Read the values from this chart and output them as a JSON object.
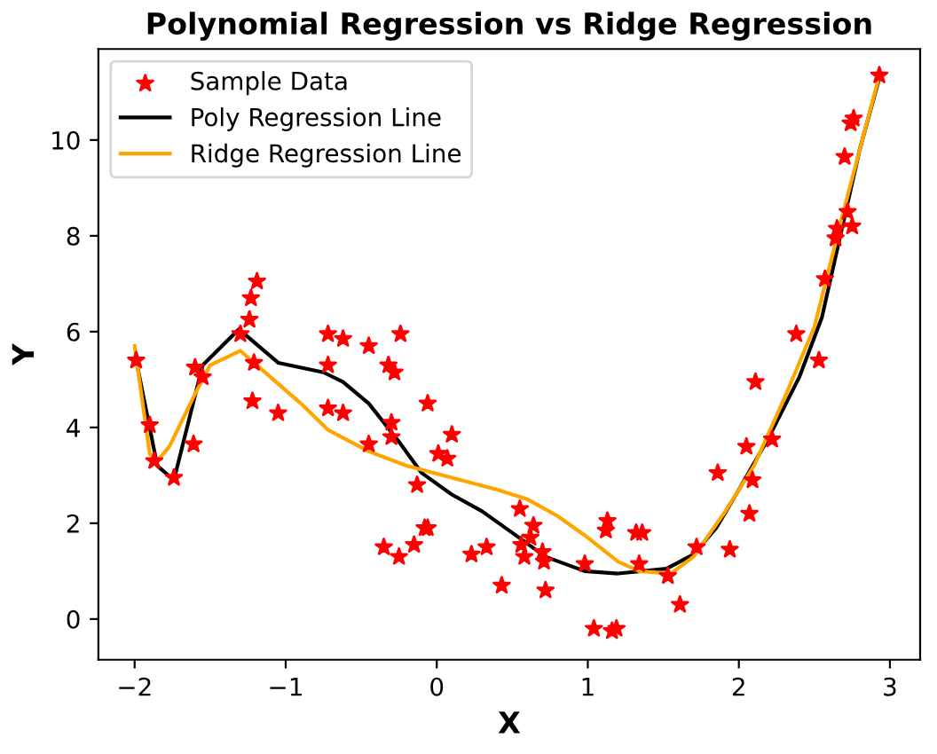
{
  "chart_data": {
    "type": "scatter",
    "title": "Polynomial Regression vs Ridge Regression",
    "xlabel": "X",
    "ylabel": "Y",
    "xlim": [
      -2.24,
      3.2
    ],
    "ylim": [
      -0.85,
      11.9
    ],
    "xticks": [
      {
        "value": -2,
        "label": "−2"
      },
      {
        "value": -1,
        "label": "−1"
      },
      0,
      1,
      2,
      3
    ],
    "yticks": [
      0,
      2,
      4,
      6,
      8,
      10
    ],
    "grid": false,
    "legend": "top left",
    "series": [
      {
        "name": "Sample Data",
        "marker": "star",
        "color": "#ff0000",
        "x": [
          -1.99,
          -1.9,
          -1.87,
          -1.74,
          -1.61,
          -1.6,
          -1.55,
          -1.3,
          -1.24,
          -1.23,
          -1.19,
          -1.22,
          -1.21,
          -1.05,
          -0.72,
          -0.72,
          -0.72,
          -0.62,
          -0.62,
          -0.45,
          -0.45,
          -0.32,
          -0.28,
          -0.24,
          -0.3,
          -0.3,
          -0.35,
          -0.25,
          -0.15,
          -0.13,
          -0.08,
          -0.06,
          -0.06,
          0.01,
          0.07,
          0.1,
          0.23,
          0.33,
          0.43,
          0.55,
          0.56,
          0.58,
          0.62,
          0.64,
          0.7,
          0.71,
          0.72,
          0.98,
          1.04,
          1.12,
          1.13,
          1.16,
          1.19,
          1.32,
          1.36,
          1.34,
          1.53,
          1.61,
          1.72,
          1.86,
          1.94,
          2.05,
          2.07,
          2.09,
          2.11,
          2.22,
          2.38,
          2.53,
          2.57,
          2.64,
          2.65,
          2.7,
          2.72,
          2.74,
          2.76,
          2.75,
          2.93
        ],
        "values": [
          5.4,
          4.05,
          3.3,
          2.95,
          3.65,
          5.25,
          5.05,
          5.95,
          6.25,
          6.7,
          7.05,
          4.55,
          5.35,
          4.3,
          5.95,
          5.3,
          4.4,
          5.85,
          4.3,
          5.7,
          3.65,
          5.3,
          5.15,
          5.95,
          4.1,
          3.8,
          1.5,
          1.3,
          1.55,
          2.8,
          1.9,
          1.9,
          4.5,
          3.45,
          3.35,
          3.85,
          1.35,
          1.5,
          0.7,
          2.3,
          1.55,
          1.3,
          1.7,
          1.95,
          1.4,
          1.2,
          0.6,
          1.15,
          -0.2,
          1.85,
          2.05,
          -0.25,
          -0.2,
          1.8,
          1.8,
          1.15,
          0.9,
          0.3,
          1.5,
          3.05,
          1.45,
          3.6,
          2.2,
          2.9,
          4.95,
          3.75,
          5.95,
          5.4,
          7.1,
          7.95,
          8.15,
          9.65,
          8.5,
          10.35,
          10.45,
          8.2,
          11.35
        ]
      },
      {
        "name": "Poly Regression Line",
        "type": "line",
        "marker": "none",
        "line_style": "solid",
        "color": "#000000",
        "x": [
          -1.99,
          -1.85,
          -1.74,
          -1.55,
          -1.31,
          -1.05,
          -0.75,
          -0.62,
          -0.45,
          -0.25,
          -0.1,
          0.1,
          0.3,
          0.5,
          0.72,
          0.98,
          1.2,
          1.52,
          1.7,
          1.85,
          2.0,
          2.2,
          2.4,
          2.55,
          2.7,
          2.8,
          2.93
        ],
        "values": [
          5.4,
          3.2,
          2.9,
          5.3,
          6.05,
          5.35,
          5.15,
          4.95,
          4.5,
          3.7,
          3.05,
          2.6,
          2.25,
          1.8,
          1.3,
          1.0,
          0.95,
          1.05,
          1.35,
          1.9,
          2.7,
          3.8,
          5.05,
          6.3,
          8.4,
          9.8,
          11.3
        ]
      },
      {
        "name": "Ridge Regression Line",
        "type": "line",
        "marker": "none",
        "line_style": "solid",
        "color": "#ffa500",
        "x": [
          -2.0,
          -1.9,
          -1.85,
          -1.77,
          -1.6,
          -1.5,
          -1.3,
          -1.1,
          -0.9,
          -0.72,
          -0.45,
          -0.2,
          0.1,
          0.4,
          0.6,
          0.8,
          1.0,
          1.2,
          1.34,
          1.55,
          1.7,
          1.9,
          2.1,
          2.3,
          2.5,
          2.7,
          2.93
        ],
        "values": [
          5.7,
          3.45,
          3.3,
          3.6,
          4.7,
          5.3,
          5.6,
          5.05,
          4.5,
          3.95,
          3.5,
          3.2,
          2.95,
          2.7,
          2.5,
          2.15,
          1.7,
          1.2,
          1.0,
          0.95,
          1.3,
          2.2,
          3.2,
          4.6,
          6.1,
          8.6,
          11.35
        ]
      }
    ]
  }
}
